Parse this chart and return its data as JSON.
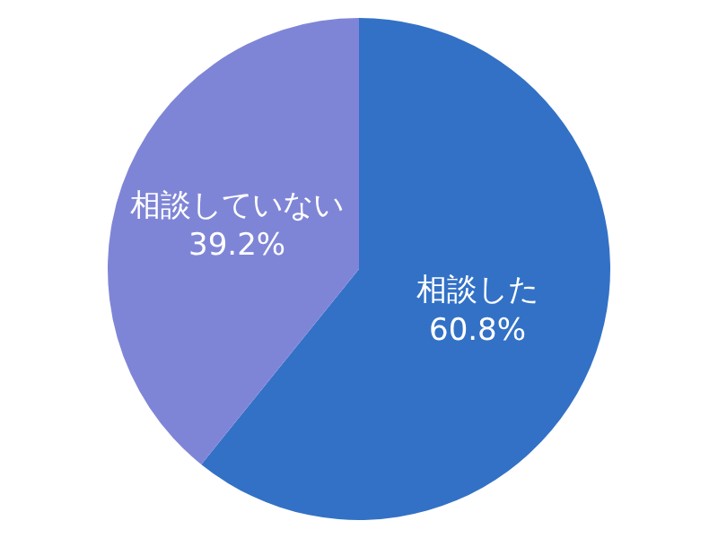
{
  "chart_data": {
    "type": "pie",
    "categories": [
      "相談した",
      "相談していない"
    ],
    "values": [
      60.8,
      39.2
    ],
    "value_labels": [
      "60.8%",
      "39.2%"
    ],
    "colors": [
      "#3371c6",
      "#7f85d6"
    ],
    "legend": false
  }
}
